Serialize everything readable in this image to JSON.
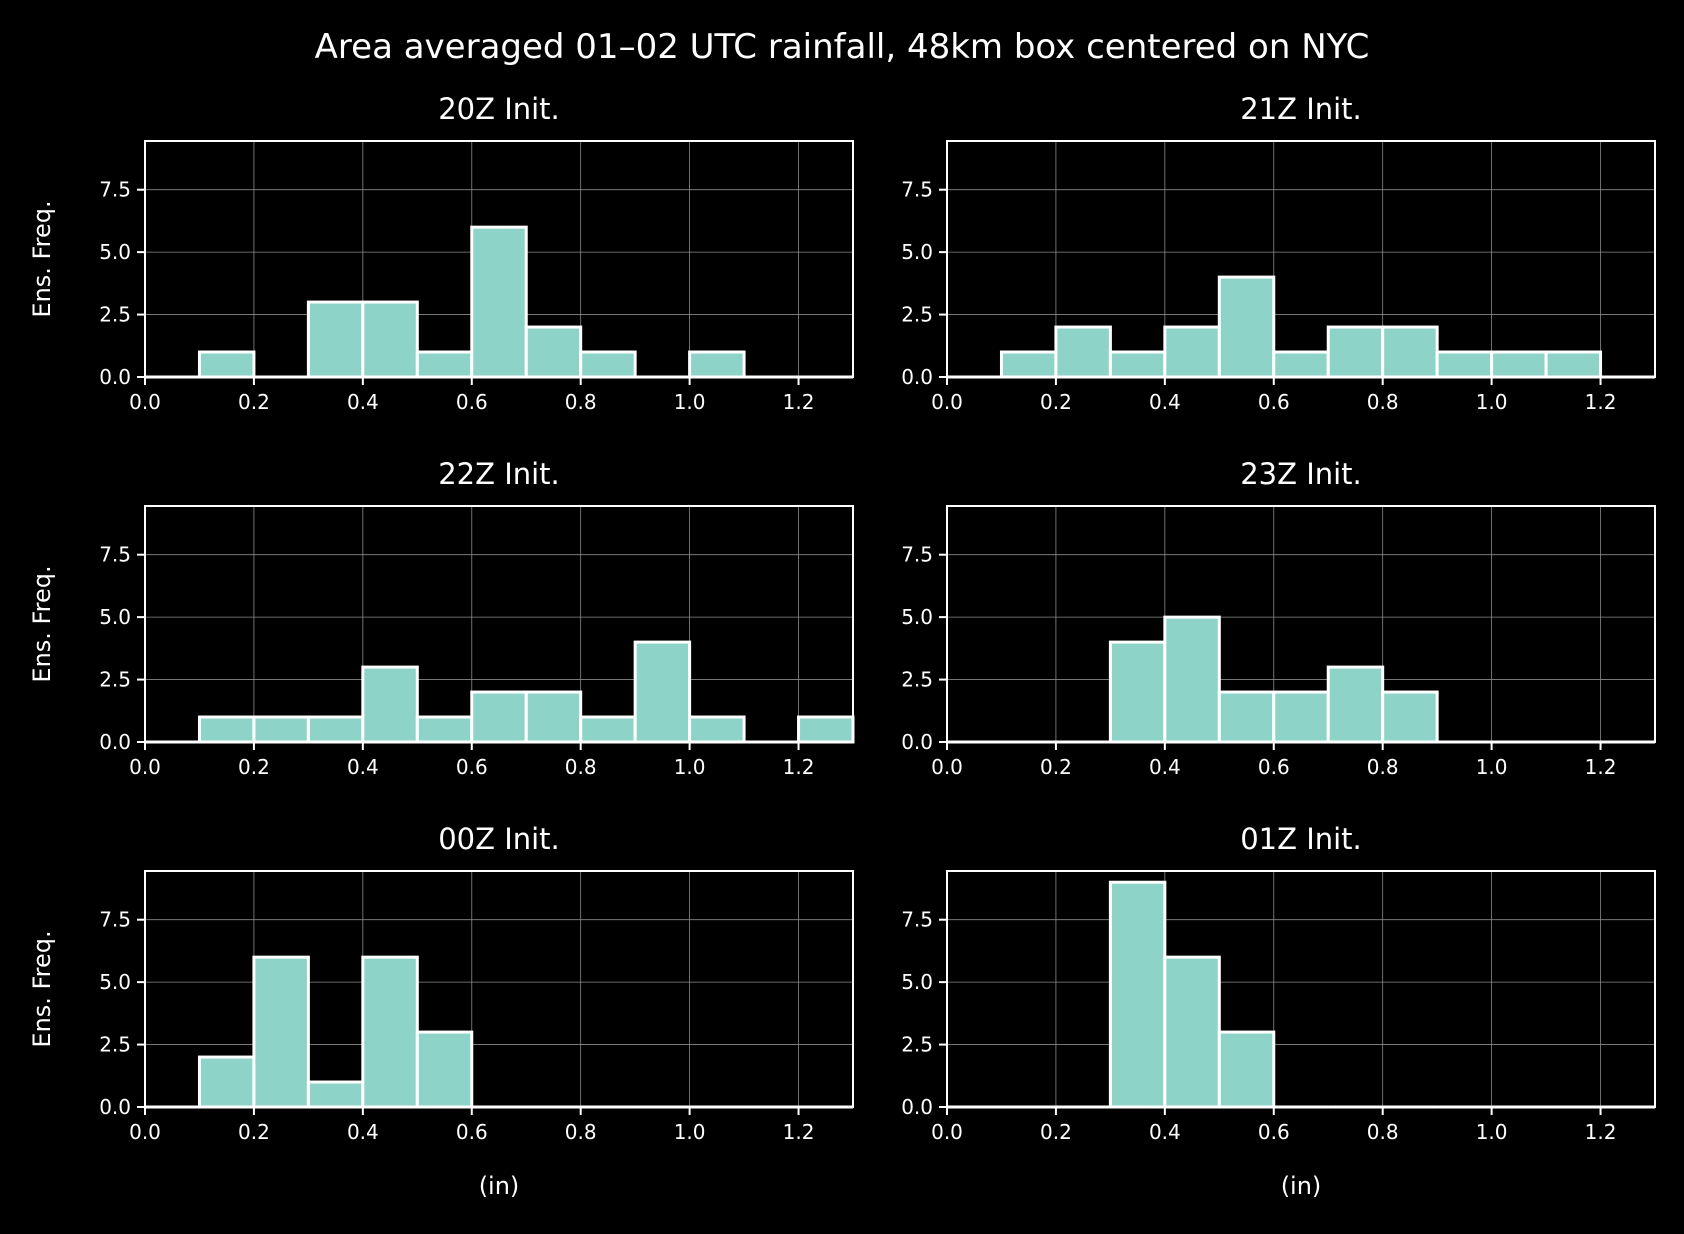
{
  "title": "Area averaged 01–02 UTC rainfall, 48km box centered on NYC",
  "colors": {
    "background": "#000000",
    "bar_fill": "#8dd3c7",
    "bar_edge": "#ffffff",
    "axes": "#ffffff",
    "grid": "#8a8a8a"
  },
  "chart_data": [
    {
      "type": "bar",
      "title": "20Z Init.",
      "ylabel": "Ens. Freq.",
      "xlabel": "",
      "bin_edges": [
        0.0,
        0.1,
        0.2,
        0.3,
        0.4,
        0.5,
        0.6,
        0.7,
        0.8,
        0.9,
        1.0,
        1.1,
        1.2,
        1.3
      ],
      "values": [
        0,
        1,
        0,
        3,
        3,
        1,
        6,
        2,
        1,
        0,
        1,
        0,
        0
      ],
      "xlim": [
        0,
        1.3
      ],
      "ylim": [
        0,
        9.45
      ],
      "xticks": [
        "0.0",
        "0.2",
        "0.4",
        "0.6",
        "0.8",
        "1.0",
        "1.2"
      ],
      "yticks": [
        "0.0",
        "2.5",
        "5.0",
        "7.5"
      ],
      "grid": true
    },
    {
      "type": "bar",
      "title": "21Z Init.",
      "ylabel": "",
      "xlabel": "",
      "bin_edges": [
        0.0,
        0.1,
        0.2,
        0.3,
        0.4,
        0.5,
        0.6,
        0.7,
        0.8,
        0.9,
        1.0,
        1.1,
        1.2,
        1.3
      ],
      "values": [
        0,
        1,
        2,
        1,
        2,
        4,
        1,
        2,
        2,
        1,
        1,
        1,
        0
      ],
      "xlim": [
        0,
        1.3
      ],
      "ylim": [
        0,
        9.45
      ],
      "xticks": [
        "0.0",
        "0.2",
        "0.4",
        "0.6",
        "0.8",
        "1.0",
        "1.2"
      ],
      "yticks": [
        "0.0",
        "2.5",
        "5.0",
        "7.5"
      ],
      "grid": true
    },
    {
      "type": "bar",
      "title": "22Z Init.",
      "ylabel": "Ens. Freq.",
      "xlabel": "",
      "bin_edges": [
        0.0,
        0.1,
        0.2,
        0.3,
        0.4,
        0.5,
        0.6,
        0.7,
        0.8,
        0.9,
        1.0,
        1.1,
        1.2,
        1.3
      ],
      "values": [
        0,
        1,
        1,
        1,
        3,
        1,
        2,
        2,
        1,
        4,
        1,
        0,
        1
      ],
      "xlim": [
        0,
        1.3
      ],
      "ylim": [
        0,
        9.45
      ],
      "xticks": [
        "0.0",
        "0.2",
        "0.4",
        "0.6",
        "0.8",
        "1.0",
        "1.2"
      ],
      "yticks": [
        "0.0",
        "2.5",
        "5.0",
        "7.5"
      ],
      "grid": true
    },
    {
      "type": "bar",
      "title": "23Z Init.",
      "ylabel": "",
      "xlabel": "",
      "bin_edges": [
        0.0,
        0.1,
        0.2,
        0.3,
        0.4,
        0.5,
        0.6,
        0.7,
        0.8,
        0.9,
        1.0,
        1.1,
        1.2,
        1.3
      ],
      "values": [
        0,
        0,
        0,
        4,
        5,
        2,
        2,
        3,
        2,
        0,
        0,
        0,
        0
      ],
      "xlim": [
        0,
        1.3
      ],
      "ylim": [
        0,
        9.45
      ],
      "xticks": [
        "0.0",
        "0.2",
        "0.4",
        "0.6",
        "0.8",
        "1.0",
        "1.2"
      ],
      "yticks": [
        "0.0",
        "2.5",
        "5.0",
        "7.5"
      ],
      "grid": true
    },
    {
      "type": "bar",
      "title": "00Z Init.",
      "ylabel": "Ens. Freq.",
      "xlabel": "(in)",
      "bin_edges": [
        0.0,
        0.1,
        0.2,
        0.3,
        0.4,
        0.5,
        0.6,
        0.7,
        0.8,
        0.9,
        1.0,
        1.1,
        1.2,
        1.3
      ],
      "values": [
        0,
        2,
        6,
        1,
        6,
        3,
        0,
        0,
        0,
        0,
        0,
        0,
        0
      ],
      "xlim": [
        0,
        1.3
      ],
      "ylim": [
        0,
        9.45
      ],
      "xticks": [
        "0.0",
        "0.2",
        "0.4",
        "0.6",
        "0.8",
        "1.0",
        "1.2"
      ],
      "yticks": [
        "0.0",
        "2.5",
        "5.0",
        "7.5"
      ],
      "grid": true
    },
    {
      "type": "bar",
      "title": "01Z Init.",
      "ylabel": "",
      "xlabel": "(in)",
      "bin_edges": [
        0.0,
        0.1,
        0.2,
        0.3,
        0.4,
        0.5,
        0.6,
        0.7,
        0.8,
        0.9,
        1.0,
        1.1,
        1.2,
        1.3
      ],
      "values": [
        0,
        0,
        0,
        9,
        6,
        3,
        0,
        0,
        0,
        0,
        0,
        0,
        0
      ],
      "xlim": [
        0,
        1.3
      ],
      "ylim": [
        0,
        9.45
      ],
      "xticks": [
        "0.0",
        "0.2",
        "0.4",
        "0.6",
        "0.8",
        "1.0",
        "1.2"
      ],
      "yticks": [
        "0.0",
        "2.5",
        "5.0",
        "7.5"
      ],
      "grid": true
    }
  ]
}
